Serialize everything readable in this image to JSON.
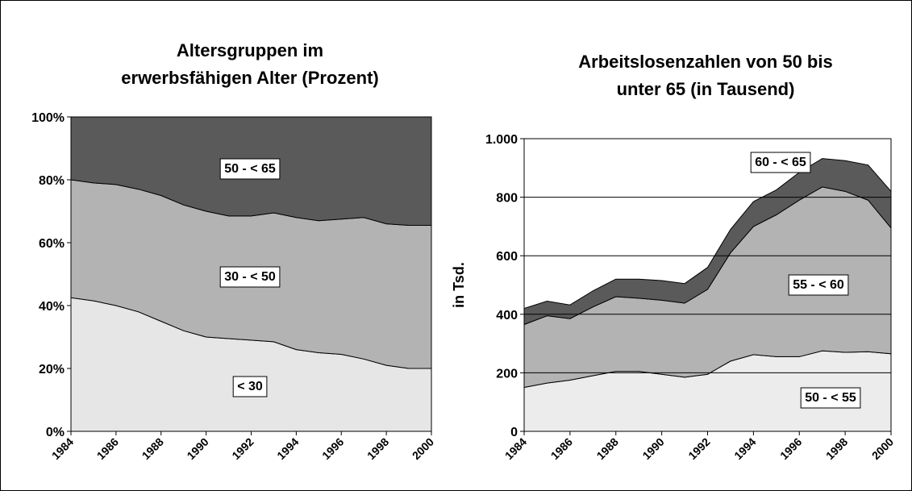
{
  "chart_data": [
    {
      "type": "area",
      "stacked": true,
      "title": [
        "Altersgruppen im",
        "erwerbsfähigen Alter (Prozent)"
      ],
      "x": [
        1984,
        1985,
        1986,
        1987,
        1988,
        1989,
        1990,
        1991,
        1992,
        1993,
        1994,
        1995,
        1996,
        1997,
        1998,
        1999,
        2000
      ],
      "xlim": [
        1984,
        2000
      ],
      "xticks": [
        1984,
        1986,
        1988,
        1990,
        1992,
        1994,
        1996,
        1998,
        2000
      ],
      "ylim": [
        0,
        100
      ],
      "yticks": [
        {
          "value": 0,
          "label": "0%"
        },
        {
          "value": 20,
          "label": "20%"
        },
        {
          "value": 40,
          "label": "40%"
        },
        {
          "value": 60,
          "label": "60%"
        },
        {
          "value": 80,
          "label": "80%"
        },
        {
          "value": 100,
          "label": "100%"
        }
      ],
      "grid": false,
      "series": [
        {
          "name": "< 30",
          "color": "#e6e6e6",
          "values": [
            42.5,
            41.5,
            40,
            38,
            35,
            32,
            30,
            29.5,
            29,
            28.5,
            26,
            25,
            24.5,
            23,
            21,
            20,
            20
          ]
        },
        {
          "name": "30 - < 50",
          "color": "#b3b3b3",
          "values": [
            37.5,
            37.5,
            38.5,
            39,
            40,
            40,
            40,
            39,
            39.5,
            41,
            42,
            42,
            43,
            45,
            45,
            45.5,
            45.5
          ]
        },
        {
          "name": "50 - < 65",
          "color": "#5a5a5a",
          "values": [
            20,
            21,
            21.5,
            23,
            25,
            28,
            30,
            31.5,
            31.5,
            30.5,
            32,
            33,
            32.5,
            32,
            34,
            34.5,
            34.5
          ]
        }
      ]
    },
    {
      "type": "area",
      "stacked": true,
      "title": [
        "Arbeitslosenzahlen von 50 bis",
        "unter 65 (in Tausend)"
      ],
      "y_label": "in Tsd.",
      "x": [
        1984,
        1985,
        1986,
        1987,
        1988,
        1989,
        1990,
        1991,
        1992,
        1993,
        1994,
        1995,
        1996,
        1997,
        1998,
        1999,
        2000
      ],
      "xlim": [
        1984,
        2000
      ],
      "xticks": [
        1984,
        1986,
        1988,
        1990,
        1992,
        1994,
        1996,
        1998,
        2000
      ],
      "ylim": [
        0,
        1000
      ],
      "yticks": [
        0,
        200,
        400,
        600,
        800,
        {
          "value": 1000,
          "label": "1.000"
        }
      ],
      "grid": true,
      "series": [
        {
          "name": "50 - < 55",
          "color": "#ececec",
          "values": [
            150,
            165,
            175,
            190,
            205,
            205,
            195,
            185,
            195,
            240,
            262,
            255,
            255,
            275,
            270,
            272,
            265
          ]
        },
        {
          "name": "55 - < 60",
          "color": "#b3b3b3",
          "values": [
            215,
            230,
            210,
            235,
            255,
            250,
            253,
            253,
            290,
            370,
            438,
            485,
            535,
            560,
            550,
            518,
            430
          ]
        },
        {
          "name": "60 - < 65",
          "color": "#5a5a5a",
          "values": [
            55,
            50,
            47,
            55,
            60,
            65,
            67,
            67,
            75,
            80,
            85,
            85,
            95,
            97,
            105,
            120,
            125
          ]
        }
      ]
    }
  ]
}
